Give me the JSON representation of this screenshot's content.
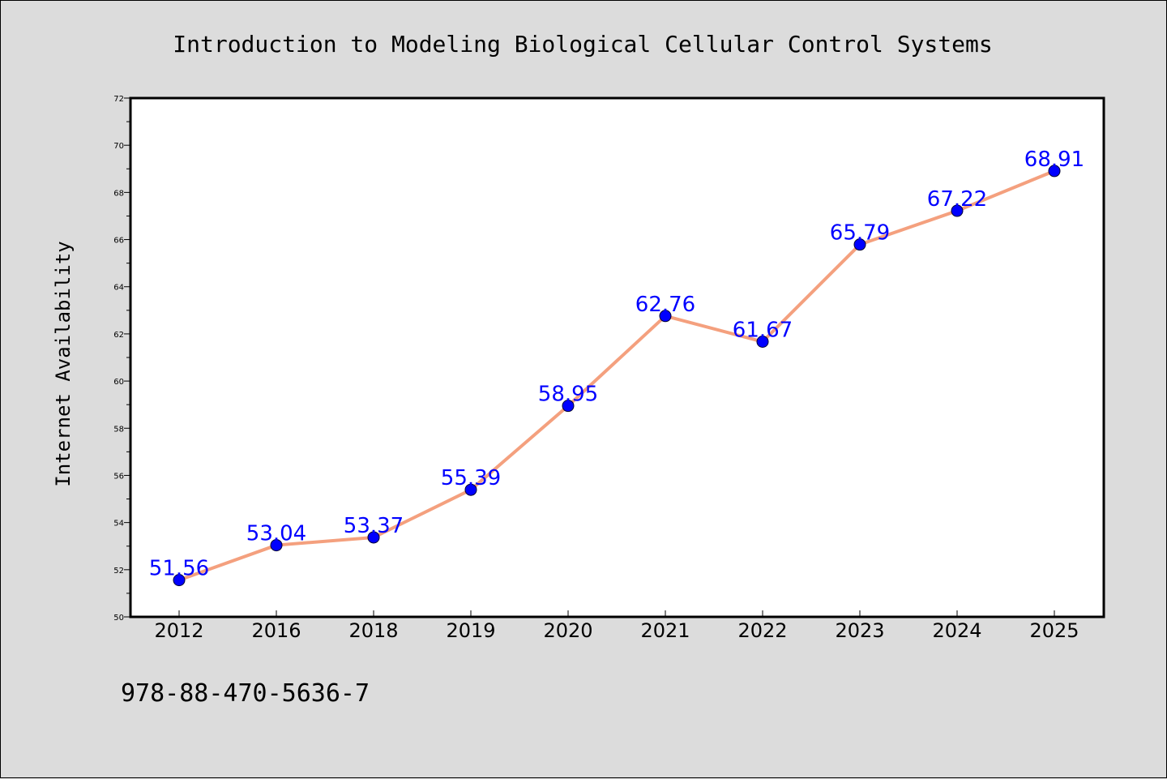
{
  "chart_data": {
    "type": "line",
    "title": "Introduction to Modeling Biological Cellular Control Systems",
    "xlabel": "",
    "ylabel": "Internet Availability",
    "categories": [
      "2012",
      "2016",
      "2018",
      "2019",
      "2020",
      "2021",
      "2022",
      "2023",
      "2024",
      "2025"
    ],
    "series": [
      {
        "values": [
          51.56,
          53.04,
          53.37,
          55.39,
          58.95,
          62.76,
          61.67,
          65.79,
          67.22,
          68.91
        ]
      }
    ],
    "data_labels": [
      "51.56",
      "53.04",
      "53.37",
      "55.39",
      "58.95",
      "62.76",
      "61.67",
      "65.79",
      "67.22",
      "68.91"
    ],
    "ylim": [
      50,
      72
    ],
    "yticks": [
      50,
      52,
      54,
      56,
      58,
      60,
      62,
      64,
      66,
      68,
      70,
      72
    ],
    "grid": false,
    "legend": "none",
    "colors": {
      "line": "#f4a07e",
      "marker": "#0000ff",
      "data_label": "#0000ff",
      "plot_background": "#ffffff",
      "figure_background": "#dcdcdc"
    }
  },
  "footer_text": "978-88-470-5636-7"
}
